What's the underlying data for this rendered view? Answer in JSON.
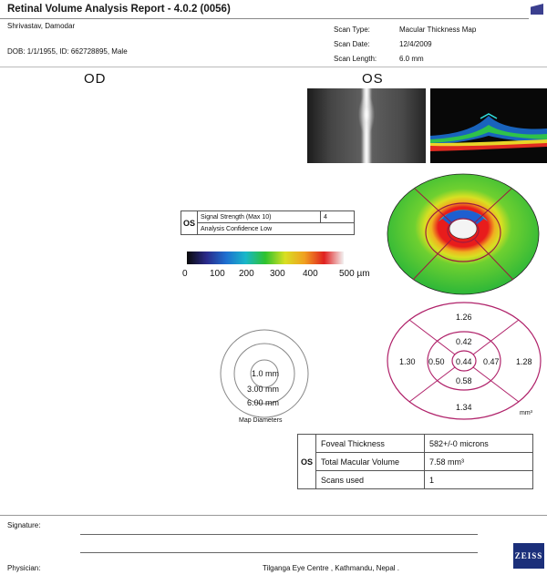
{
  "report": {
    "title": "Retinal Volume Analysis Report - 4.0.2 (0056)",
    "patient_name": "Shrivastav, Damodar",
    "patient_info": "DOB: 1/1/1955, ID: 662728895, Male"
  },
  "scan": {
    "type_label": "Scan Type:",
    "type_value": "Macular Thickness Map",
    "date_label": "Scan Date:",
    "date_value": "12/4/2009",
    "length_label": "Scan Length:",
    "length_value": "6.0 mm"
  },
  "eyes": {
    "od": "OD",
    "os": "OS"
  },
  "signal": {
    "eye": "OS",
    "strength_label": "Signal Strength (Max 10)",
    "strength_value": "4",
    "confidence": "Analysis Confidence Low"
  },
  "colorbar": {
    "ticks": [
      "0",
      "100",
      "200",
      "300",
      "400",
      "500 µm"
    ],
    "colors": [
      "#0a0a0a",
      "#2a2a8a",
      "#1e6fd0",
      "#19b7c9",
      "#2ec22e",
      "#d8e022",
      "#f0a020",
      "#e02020",
      "#f2f2f2"
    ]
  },
  "map_diameters": {
    "inner": "1.0 mm",
    "middle": "3.00 mm",
    "outer": "6.00 mm",
    "caption": "Map Diameters"
  },
  "volume_grid": {
    "center": "0.44",
    "inner_superior": "0.42",
    "inner_inferior": "0.58",
    "inner_nasal": "0.50",
    "inner_temporal": "0.47",
    "outer_superior": "1.26",
    "outer_inferior": "1.34",
    "outer_left": "1.30",
    "outer_right": "1.28",
    "unit": "mm³"
  },
  "measurements": {
    "eye": "OS",
    "foveal_label": "Foveal Thickness",
    "foveal_value": "582+/-0 microns",
    "volume_label": "Total Macular Volume",
    "volume_value": "7.58 mm³",
    "scans_label": "Scans used",
    "scans_value": "1"
  },
  "footer": {
    "signature_label": "Signature:",
    "physician_label": "Physician:",
    "clinic": "Tilganga Eye Centre , Kathmandu, Nepal .",
    "logo": "ZEISS"
  }
}
